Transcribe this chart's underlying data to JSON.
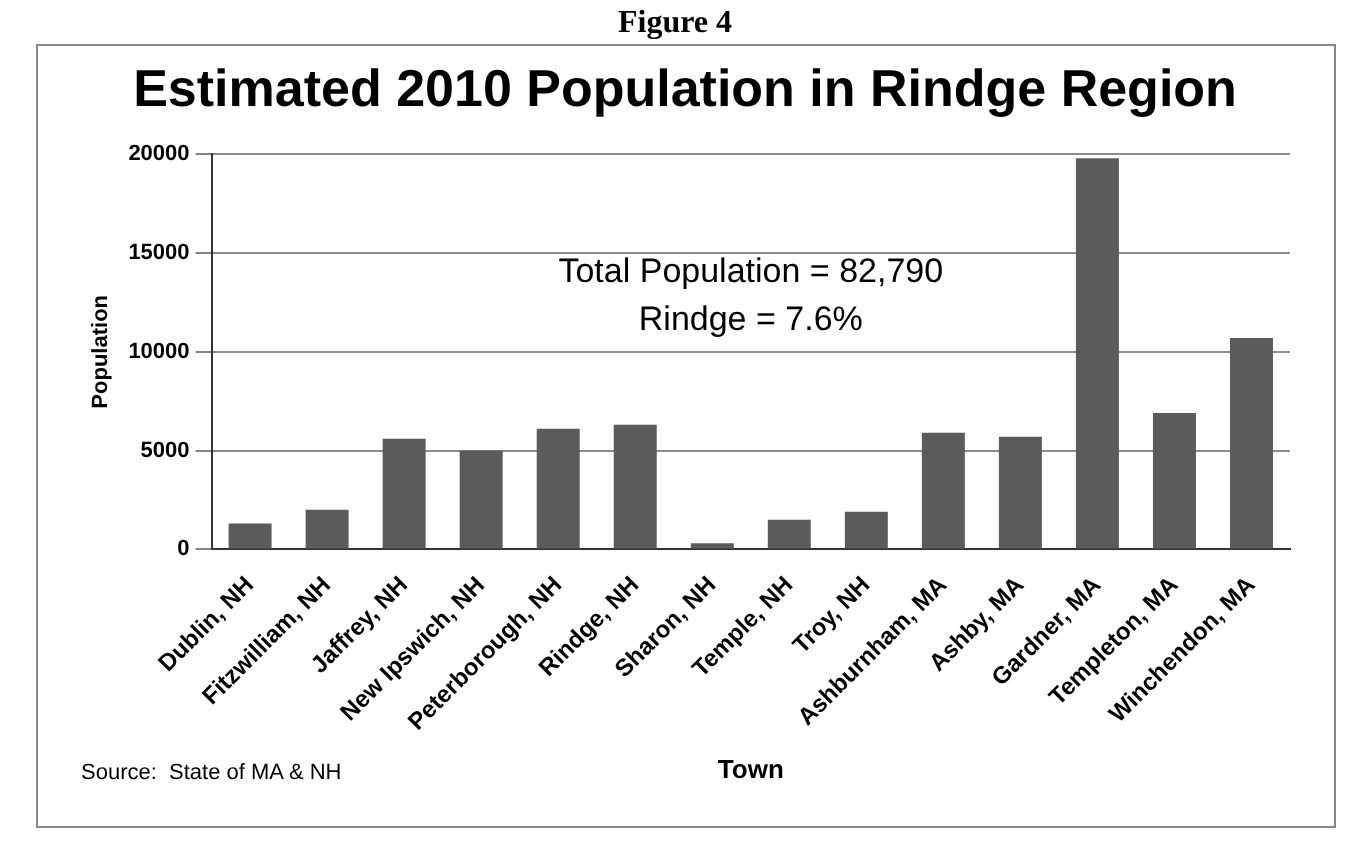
{
  "chart_data": {
    "type": "bar",
    "title": "Estimated 2010 Population in Rindge Region",
    "xlabel": "Town",
    "ylabel": "Population",
    "categories": [
      "Dublin, NH",
      "Fitzwilliam, NH",
      "Jaffrey, NH",
      "New Ipswich, NH",
      "Peterborough, NH",
      "Rindge, NH",
      "Sharon, NH",
      "Temple, NH",
      "Troy, NH",
      "Ashburnham, MA",
      "Ashby, MA",
      "Gardner, MA",
      "Templeton, MA",
      "Winchendon, MA"
    ],
    "values": [
      1300,
      2000,
      5600,
      5000,
      6100,
      6300,
      300,
      1500,
      1900,
      5900,
      5700,
      19800,
      6900,
      10700
    ],
    "color": "#5b5b5b",
    "ylim": [
      0,
      20000
    ],
    "yticks": [
      0,
      5000,
      10000,
      15000,
      20000
    ],
    "grid": "y",
    "annotations": [
      "Figure 4",
      "Total Population = 82,790",
      "Rindge = 7.6%",
      "Source:  State of MA & NH"
    ]
  }
}
